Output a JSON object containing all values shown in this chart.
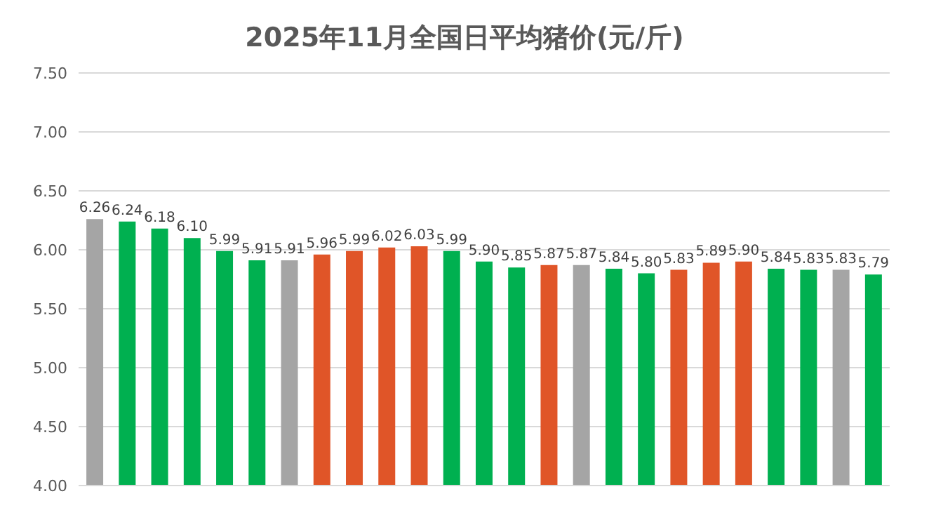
{
  "chart_data": {
    "type": "bar",
    "title": "2025年11月全国日平均猪价(元/斤)",
    "categories": [
      null,
      null,
      null,
      null,
      null,
      null,
      null,
      null,
      null,
      null,
      null,
      null,
      null,
      null,
      null,
      null,
      null,
      null,
      null,
      null,
      null,
      null,
      null,
      null,
      null
    ],
    "values": [
      6.26,
      6.24,
      6.18,
      6.1,
      5.99,
      5.91,
      5.91,
      5.96,
      5.99,
      6.02,
      6.03,
      5.99,
      5.9,
      5.85,
      5.87,
      5.87,
      5.84,
      5.8,
      5.83,
      5.89,
      5.9,
      5.84,
      5.83,
      5.83,
      5.79
    ],
    "colors": [
      "#a5a5a5",
      "#00b050",
      "#00b050",
      "#00b050",
      "#00b050",
      "#00b050",
      "#a5a5a5",
      "#e05528",
      "#e05528",
      "#e05528",
      "#e05528",
      "#00b050",
      "#00b050",
      "#00b050",
      "#e05528",
      "#a5a5a5",
      "#00b050",
      "#00b050",
      "#e05528",
      "#e05528",
      "#e05528",
      "#00b050",
      "#00b050",
      "#a5a5a5",
      "#00b050"
    ],
    "ylim": [
      4.0,
      7.5
    ],
    "yticks": [
      {
        "value": 4,
        "label": "4.00"
      },
      {
        "value": 4.5,
        "label": "4.50"
      },
      {
        "value": 5,
        "label": "5.00"
      },
      {
        "value": 5.5,
        "label": "5.50"
      },
      {
        "value": 6,
        "label": "6.00"
      },
      {
        "value": 6.5,
        "label": "6.50"
      },
      {
        "value": 7,
        "label": "7.00"
      },
      {
        "value": 7.5,
        "label": "7.50"
      }
    ],
    "value_labels": [
      "6.26",
      "6.24",
      "6.18",
      "6.10",
      "5.99",
      "5.91",
      "5.91",
      "5.96",
      "5.99",
      "6.02",
      "6.03",
      "5.99",
      "5.90",
      "5.85",
      "5.87",
      "5.87",
      "5.84",
      "5.80",
      "5.83",
      "5.89",
      "5.90",
      "5.84",
      "5.83",
      "5.83",
      "5.79"
    ],
    "grid": "y"
  }
}
